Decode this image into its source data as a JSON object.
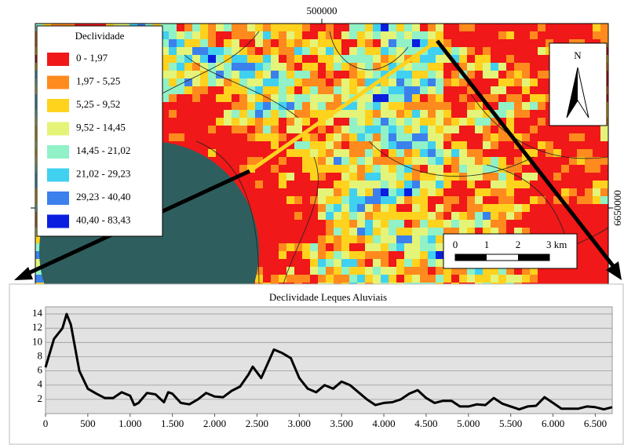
{
  "map": {
    "x_coordinate": "500000",
    "y_coordinate": "6650000",
    "legend": {
      "title": "Declividade",
      "items": [
        {
          "label": "0 - 1,97",
          "color": "#f01818"
        },
        {
          "label": "1,97 - 5,25",
          "color": "#ff8a1e"
        },
        {
          "label": "5,25 - 9,52",
          "color": "#ffd21e"
        },
        {
          "label": "9,52 - 14,45",
          "color": "#e4f478"
        },
        {
          "label": "14,45 - 21,02",
          "color": "#90f2c6"
        },
        {
          "label": "21,02 - 29,23",
          "color": "#40d0f0"
        },
        {
          "label": "29,23 - 40,40",
          "color": "#3c80ec"
        },
        {
          "label": "40,40 - 83,43",
          "color": "#0a1ee0"
        }
      ]
    },
    "north": "N",
    "scale_labels": [
      "0",
      "1",
      "2",
      "3 km"
    ]
  },
  "chart_data": {
    "type": "line",
    "title": "Declividade Leques Aluviais",
    "color": "#000000",
    "grid": true,
    "x": [
      0,
      100,
      200,
      250,
      300,
      400,
      500,
      600,
      700,
      800,
      900,
      1000,
      1050,
      1100,
      1200,
      1300,
      1400,
      1450,
      1500,
      1600,
      1700,
      1800,
      1900,
      2000,
      2100,
      2200,
      2300,
      2400,
      2450,
      2550,
      2700,
      2800,
      2900,
      3000,
      3100,
      3200,
      3300,
      3400,
      3500,
      3600,
      3700,
      3800,
      3900,
      4000,
      4100,
      4200,
      4300,
      4400,
      4500,
      4600,
      4700,
      4800,
      4900,
      5000,
      5100,
      5200,
      5300,
      5400,
      5500,
      5600,
      5700,
      5800,
      5900,
      6000,
      6100,
      6200,
      6300,
      6400,
      6500,
      6600,
      6700
    ],
    "values": [
      6.5,
      10.5,
      12,
      14,
      12.5,
      6,
      3.5,
      2.8,
      2.2,
      2.2,
      3,
      2.5,
      1.2,
      1.5,
      2.9,
      2.7,
      1.6,
      3,
      2.8,
      1.5,
      1.3,
      2,
      2.9,
      2.4,
      2.3,
      3.2,
      3.8,
      5.5,
      6.6,
      5,
      9,
      8.5,
      7.8,
      5,
      3.5,
      3,
      4,
      3.5,
      4.5,
      4,
      3,
      2,
      1.2,
      1.5,
      1.6,
      2,
      2.8,
      3.3,
      2.2,
      1.5,
      1.8,
      1.8,
      1,
      1,
      1.3,
      1.2,
      2.2,
      1.4,
      1,
      0.6,
      1,
      1.1,
      2.3,
      1.5,
      0.7,
      0.7,
      0.7,
      1,
      0.9,
      0.6,
      0.9
    ],
    "xlim": [
      0,
      6700
    ],
    "ylim": [
      0,
      15
    ],
    "xticks": [
      0,
      500,
      {
        "value": 1000,
        "label": "1.000"
      },
      {
        "value": 1500,
        "label": "1.500"
      },
      {
        "value": 2000,
        "label": "2.000"
      },
      {
        "value": 2500,
        "label": "2.500"
      },
      {
        "value": 3000,
        "label": "3.000"
      },
      {
        "value": 3500,
        "label": "3.500"
      },
      {
        "value": 4000,
        "label": "4.000"
      },
      {
        "value": 4500,
        "label": "4.500"
      },
      {
        "value": 5000,
        "label": "5.000"
      },
      {
        "value": 5500,
        "label": "5.500"
      },
      {
        "value": 6000,
        "label": "6.000"
      },
      {
        "value": 6500,
        "label": "6.500"
      }
    ],
    "yticks": [
      2,
      4,
      6,
      8,
      10,
      12,
      14
    ]
  }
}
